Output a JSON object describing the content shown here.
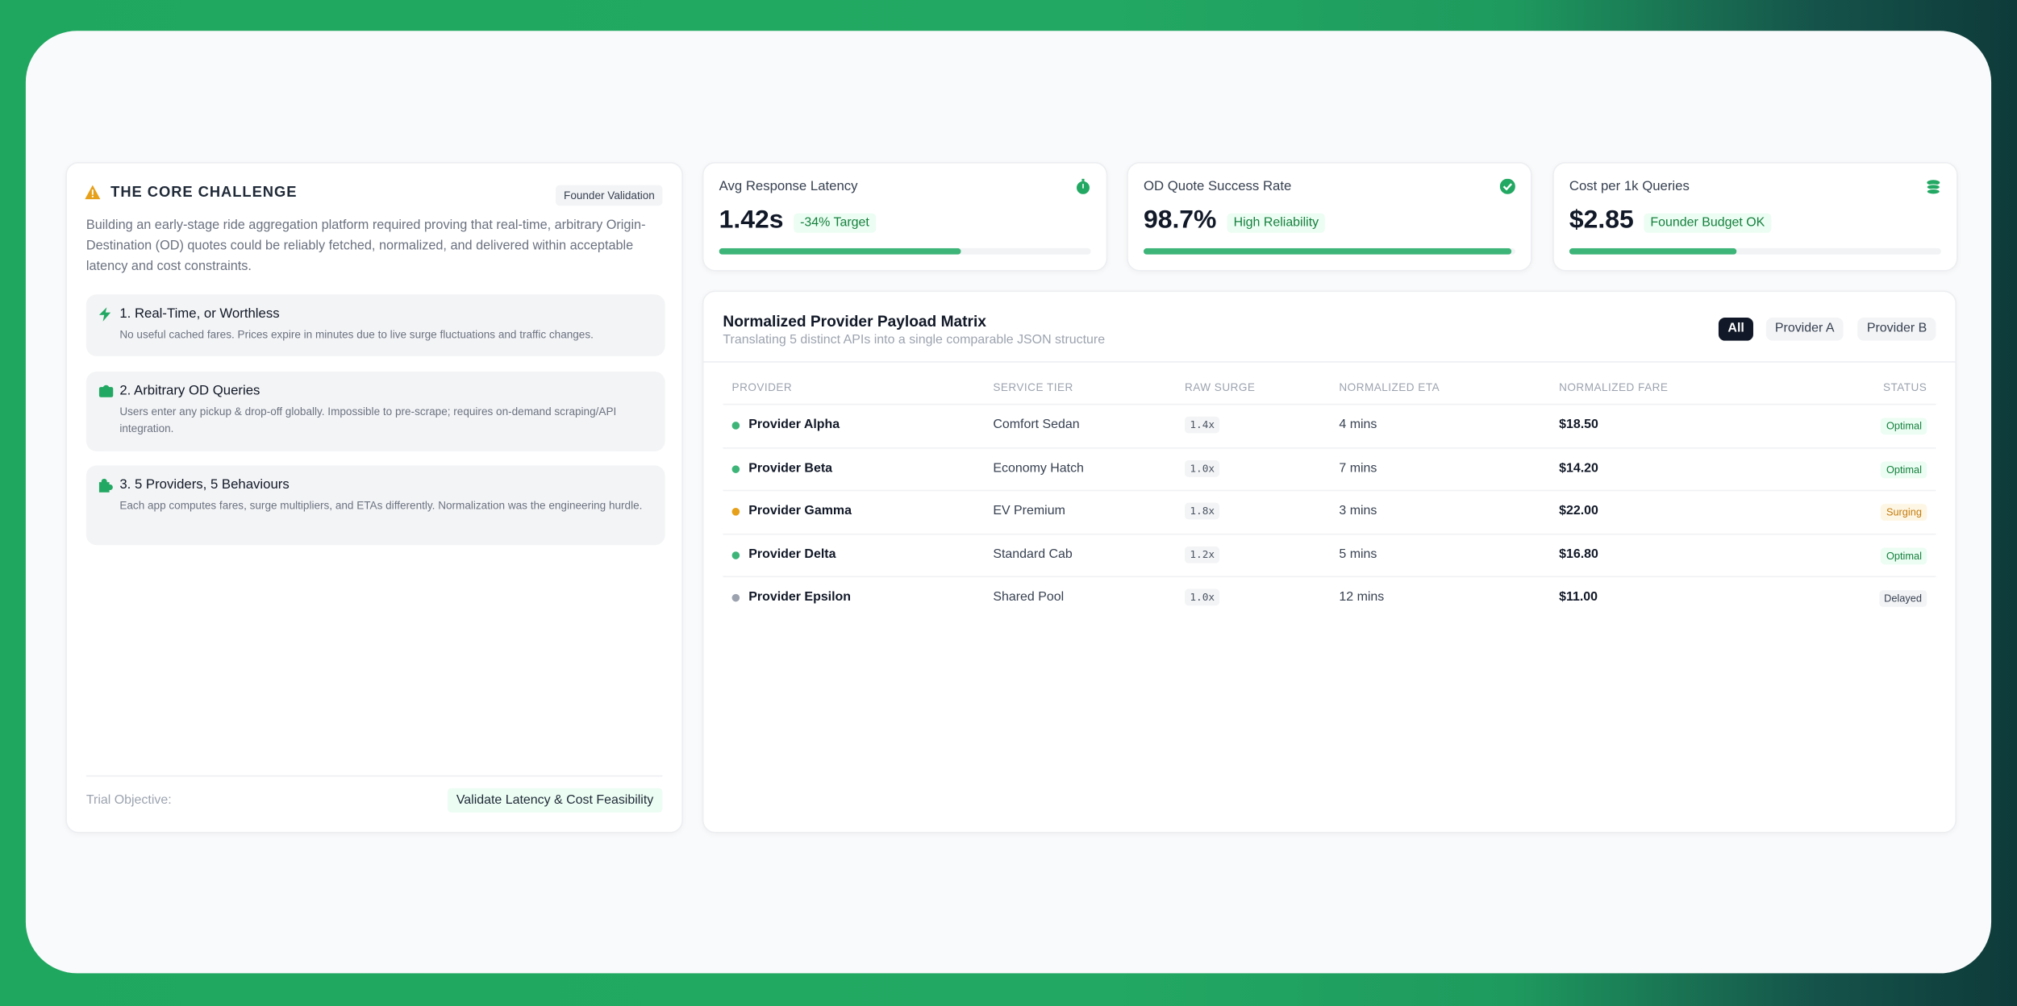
{
  "challenge": {
    "title": "THE CORE CHALLENGE",
    "badge": "Founder Validation",
    "description": "Building an early-stage ride aggregation platform required proving that real-time, arbitrary Origin-Destination (OD) quotes could be reliably fetched, normalized, and delivered within acceptable latency and cost constraints.",
    "items": [
      {
        "title": "1. Real-Time, or Worthless",
        "text": "No useful cached fares. Prices expire in minutes due to live surge fluctuations and traffic changes."
      },
      {
        "title": "2. Arbitrary OD Queries",
        "text": "Users enter any pickup & drop-off globally. Impossible to pre-scrape; requires on-demand scraping/API integration."
      },
      {
        "title": "3. 5 Providers, 5 Behaviours",
        "text": "Each app computes fares, surge multipliers, and ETAs differently. Normalization was the engineering hurdle."
      }
    ],
    "footer_label": "Trial Objective:",
    "footer_value": "Validate Latency & Cost Feasibility"
  },
  "kpis": [
    {
      "label": "Avg Response Latency",
      "value": "1.42s",
      "badge": "-34% Target",
      "progress": 65
    },
    {
      "label": "OD Quote Success Rate",
      "value": "98.7%",
      "badge": "High Reliability",
      "progress": 99
    },
    {
      "label": "Cost per 1k Queries",
      "value": "$2.85",
      "badge": "Founder Budget OK",
      "progress": 45
    }
  ],
  "matrix": {
    "title": "Normalized Provider Payload Matrix",
    "subtitle": "Translating 5 distinct APIs into a single comparable JSON structure",
    "filters": [
      "All",
      "Provider A",
      "Provider B"
    ],
    "columns": [
      "PROVIDER",
      "SERVICE TIER",
      "RAW SURGE",
      "NORMALIZED ETA",
      "NORMALIZED FARE",
      "STATUS"
    ],
    "rows": [
      [
        "Provider Alpha",
        "Comfort Sedan",
        "1.4x",
        "4 mins",
        "$18.50",
        "Optimal"
      ],
      [
        "Provider Beta",
        "Economy Hatch",
        "1.0x",
        "7 mins",
        "$14.20",
        "Optimal"
      ],
      [
        "Provider Gamma",
        "EV Premium",
        "1.8x",
        "3 mins",
        "$22.00",
        "Surging"
      ],
      [
        "Provider Delta",
        "Standard Cab",
        "1.2x",
        "5 mins",
        "$16.80",
        "Optimal"
      ],
      [
        "Provider Epsilon",
        "Shared Pool",
        "1.0x",
        "12 mins",
        "$11.00",
        "Delayed"
      ]
    ],
    "row_colors": [
      "#3db478",
      "#3db478",
      "#e6a019",
      "#3db478",
      "#9ca3af"
    ]
  }
}
